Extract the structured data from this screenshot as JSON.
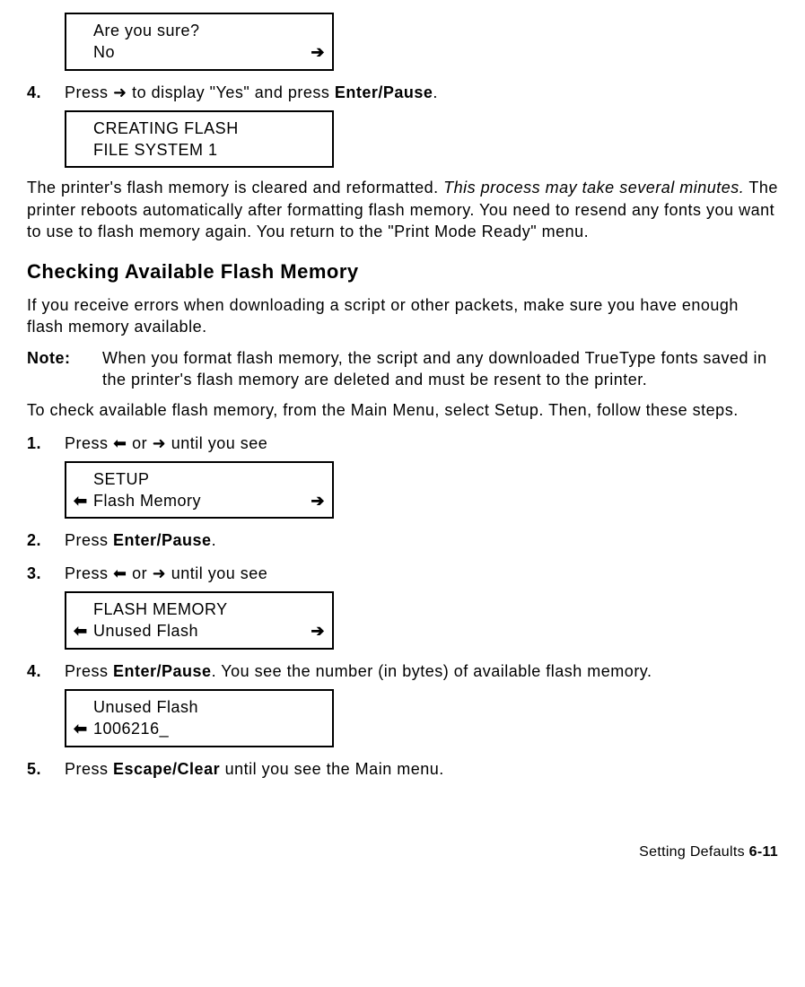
{
  "box1": {
    "line1_left": "",
    "line1_text": "Are you sure?",
    "line1_right": "",
    "line2_left": "",
    "line2_text": "No",
    "line2_right": "arrow-right"
  },
  "step4a": {
    "num": "4.",
    "pre": "Press ",
    "arrow": "inline-arrow-right",
    "mid": " to display \"Yes\" and press ",
    "bold": "Enter/Pause",
    "post": "."
  },
  "box2": {
    "line1_left": "",
    "line1_text": "CREATING FLASH",
    "line1_right": "",
    "line2_left": "",
    "line2_text": "FILE SYSTEM 1",
    "line2_right": ""
  },
  "para1a": "The printer's flash memory is cleared and reformatted.  ",
  "para1b": "This process may take several minutes.",
  "para1c": "  The printer reboots automatically after formatting flash memory.  You need to resend any fonts you want to use to flash memory again.  You return to the \"Print Mode Ready\" menu.",
  "heading": "Checking Available Flash Memory",
  "para2": "If you receive errors when downloading a script or other packets, make sure you have enough flash memory available.",
  "note": {
    "label": "Note:",
    "body": "When you format flash memory, the script and any downloaded TrueType fonts saved in the printer's flash memory are deleted and must be resent to the printer."
  },
  "para3": "To check available flash memory, from the Main Menu, select Setup.  Then, follow these steps.",
  "step1": {
    "num": "1.",
    "pre": "Press ",
    "arrow1": "inline-arrow-left",
    "mid": " or ",
    "arrow2": "inline-arrow-right",
    "post": " until you see"
  },
  "box3": {
    "line1_left": "",
    "line1_text": "SETUP",
    "line1_right": "",
    "line2_left": "arrow-left",
    "line2_text": "Flash Memory",
    "line2_right": "arrow-right"
  },
  "step2": {
    "num": "2.",
    "pre": "Press ",
    "bold": "Enter/Pause",
    "post": "."
  },
  "step3": {
    "num": "3.",
    "pre": "Press ",
    "arrow1": "inline-arrow-left",
    "mid": " or ",
    "arrow2": "inline-arrow-right",
    "post": " until you see"
  },
  "box4": {
    "line1_left": "",
    "line1_text": "FLASH MEMORY",
    "line1_right": "",
    "line2_left": "arrow-left",
    "line2_text": "Unused Flash",
    "line2_right": "arrow-right"
  },
  "step4b": {
    "num": "4.",
    "pre": "Press ",
    "bold": "Enter/Pause",
    "post": ".  You see the number (in bytes) of available flash memory."
  },
  "box5": {
    "line1_left": "",
    "line1_text": "Unused Flash",
    "line1_right": "",
    "line2_left": "arrow-left",
    "line2_text": "1006216_",
    "line2_right": ""
  },
  "step5": {
    "num": "5.",
    "pre": "Press ",
    "bold": "Escape/Clear",
    "post": " until you see the Main menu."
  },
  "footer": {
    "section": "Setting Defaults  ",
    "page": "6-11"
  }
}
